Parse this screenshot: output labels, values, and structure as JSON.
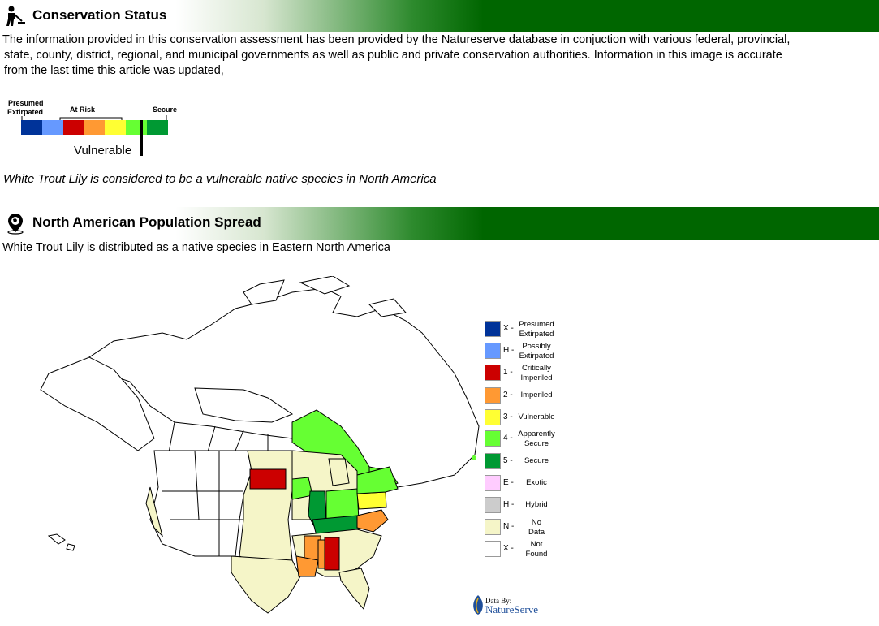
{
  "conservation": {
    "title": "Conservation Status",
    "intro_line1": "The information provided in this conservation assessment has been provided by the Natureserve  database in conjuction with various federal, provincial,",
    "intro_line2": "state, county, district, regional, and  municipal governments as well as public and private conservation authorities. Information in this image is accurate",
    "intro_line3": "from the last time this article was updated,",
    "scale": {
      "presumed_line1": "Presumed",
      "presumed_line2": "Extirpated",
      "at_risk": "At Risk",
      "secure": "Secure",
      "marker_label": "Vulnerable",
      "colors": [
        "#003399",
        "#6699ff",
        "#cc0000",
        "#ff9933",
        "#ffff33",
        "#66ff33",
        "#009933"
      ]
    },
    "statement": "White Trout Lily is considered to be a vulnerable native species in North America"
  },
  "population": {
    "title": "North American Population Spread",
    "statement": "White Trout Lily is distributed as a native species in Eastern North America"
  },
  "legend": [
    {
      "code": "X -",
      "line1": "Presumed",
      "line2": "Extirpated",
      "color": "#003399"
    },
    {
      "code": "H -",
      "line1": "Possibly",
      "line2": "Extirpated",
      "color": "#6699ff"
    },
    {
      "code": "1 -",
      "line1": "Critically",
      "line2": "Imperiled",
      "color": "#cc0000"
    },
    {
      "code": "2 -",
      "line1": "Imperiled",
      "line2": "",
      "color": "#ff9933"
    },
    {
      "code": "3 -",
      "line1": "Vulnerable",
      "line2": "",
      "color": "#ffff33"
    },
    {
      "code": "4 -",
      "line1": "Apparently",
      "line2": "Secure",
      "color": "#66ff33"
    },
    {
      "code": "5 -",
      "line1": "Secure",
      "line2": "",
      "color": "#009933"
    },
    {
      "code": "E -",
      "line1": "Exotic",
      "line2": "",
      "color": "#ffccff"
    },
    {
      "code": "H -",
      "line1": "Hybrid",
      "line2": "",
      "color": "#cccccc"
    },
    {
      "code": "N -",
      "line1": "No",
      "line2": "Data",
      "color": "#f5f5c8"
    },
    {
      "code": "X -",
      "line1": "Not",
      "line2": "Found",
      "color": "#ffffff"
    }
  ],
  "credit": {
    "line1": "Data By:",
    "line2": "NatureServe"
  },
  "icons": {
    "conservation": "gardener-icon",
    "population": "globe-pin-icon"
  }
}
